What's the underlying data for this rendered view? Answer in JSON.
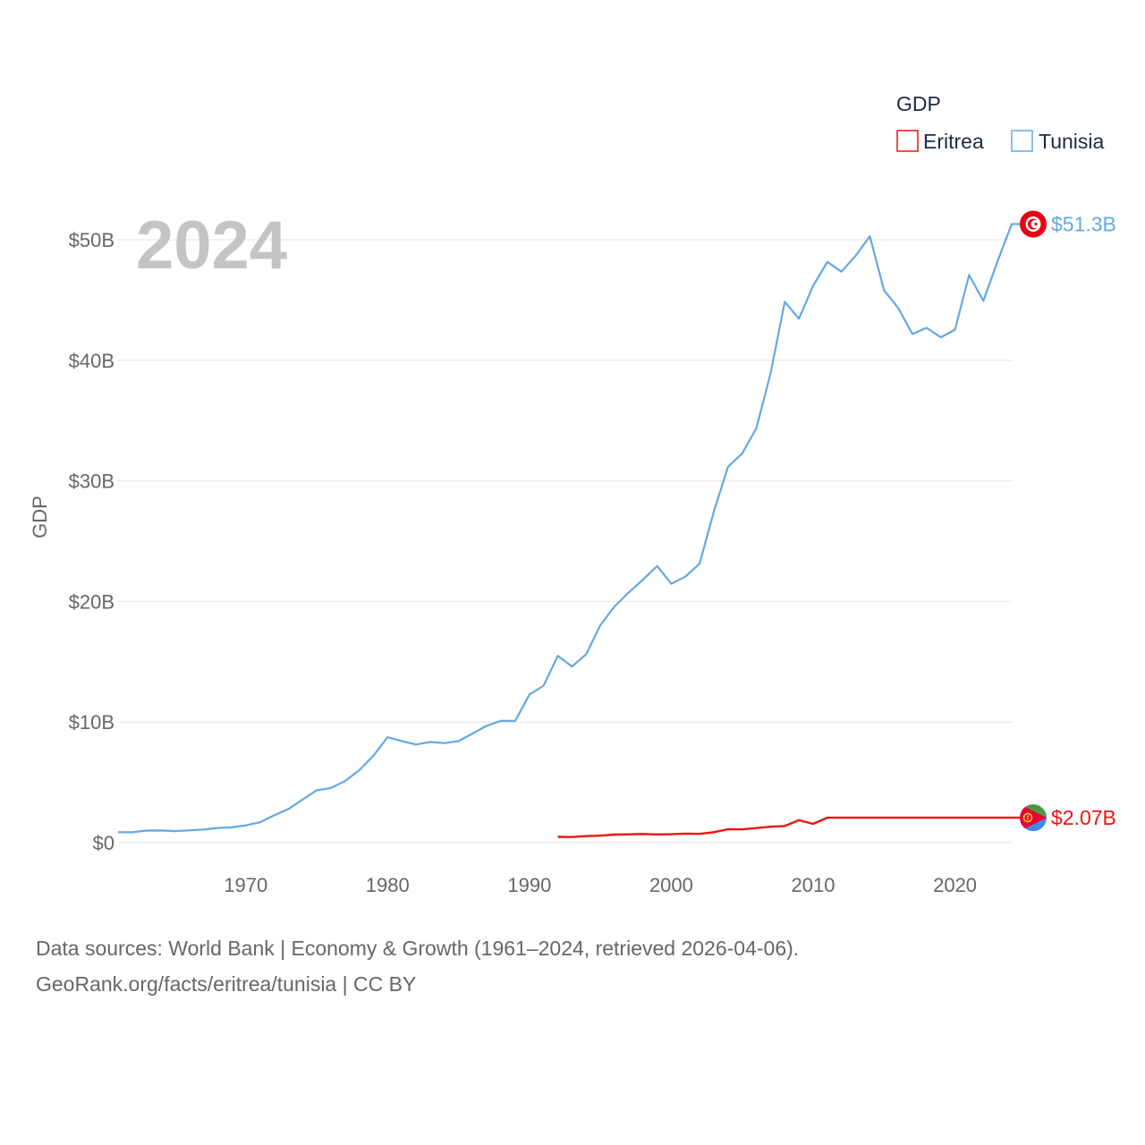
{
  "chart_data": {
    "type": "line",
    "title": "GDP",
    "ylabel": "GDP",
    "xlabel": "",
    "year_label": "2024",
    "ylim": [
      0,
      50000000000
    ],
    "xlim": [
      1961,
      2024
    ],
    "y_ticks": [
      {
        "value": 0,
        "label": "$0"
      },
      {
        "value": 10000000000,
        "label": "$10B"
      },
      {
        "value": 20000000000,
        "label": "$20B"
      },
      {
        "value": 30000000000,
        "label": "$30B"
      },
      {
        "value": 40000000000,
        "label": "$40B"
      },
      {
        "value": 50000000000,
        "label": "$50B"
      }
    ],
    "x_ticks": [
      {
        "value": 1970,
        "label": "1970"
      },
      {
        "value": 1980,
        "label": "1980"
      },
      {
        "value": 1990,
        "label": "1990"
      },
      {
        "value": 2000,
        "label": "2000"
      },
      {
        "value": 2010,
        "label": "2010"
      },
      {
        "value": 2020,
        "label": "2020"
      }
    ],
    "grid": true,
    "legend": {
      "title": "GDP",
      "position": "top-right"
    },
    "series": [
      {
        "name": "Eritrea",
        "color": "#ee1111",
        "end_label": "$2.07B",
        "flag_icon": "eritrea-flag-icon",
        "x": [
          1992,
          1993,
          1994,
          1995,
          1996,
          1997,
          1998,
          1999,
          2000,
          2001,
          2002,
          2003,
          2004,
          2005,
          2006,
          2007,
          2008,
          2009,
          2010,
          2011,
          2024
        ],
        "values": [
          480000000,
          470000000,
          540000000,
          580000000,
          670000000,
          690000000,
          720000000,
          680000000,
          700000000,
          750000000,
          730000000,
          870000000,
          1110000000,
          1100000000,
          1210000000,
          1320000000,
          1380000000,
          1860000000,
          1560000000,
          2070000000,
          2070000000
        ]
      },
      {
        "name": "Tunisia",
        "color": "#62a8e5",
        "end_label": "$51.3B",
        "flag_icon": "tunisia-flag-icon",
        "x": [
          1961,
          1962,
          1963,
          1964,
          1965,
          1966,
          1967,
          1968,
          1969,
          1970,
          1971,
          1972,
          1973,
          1974,
          1975,
          1976,
          1977,
          1978,
          1979,
          1980,
          1981,
          1982,
          1983,
          1984,
          1985,
          1986,
          1987,
          1988,
          1989,
          1990,
          1991,
          1992,
          1993,
          1994,
          1995,
          1996,
          1997,
          1998,
          1999,
          2000,
          2001,
          2002,
          2003,
          2004,
          2005,
          2006,
          2007,
          2008,
          2009,
          2010,
          2011,
          2012,
          2013,
          2014,
          2015,
          2016,
          2017,
          2018,
          2019,
          2020,
          2021,
          2022,
          2023,
          2024
        ],
        "values": [
          870000000,
          860000000,
          1000000000,
          1010000000,
          960000000,
          1020000000,
          1080000000,
          1220000000,
          1270000000,
          1430000000,
          1690000000,
          2260000000,
          2780000000,
          3570000000,
          4340000000,
          4530000000,
          5110000000,
          6000000000,
          7200000000,
          8740000000,
          8430000000,
          8140000000,
          8350000000,
          8260000000,
          8420000000,
          9050000000,
          9700000000,
          10100000000,
          10100000000,
          12290000000,
          13020000000,
          15500000000,
          14610000000,
          15630000000,
          18030000000,
          19590000000,
          20750000000,
          21800000000,
          22940000000,
          21470000000,
          22070000000,
          23140000000,
          27450000000,
          31180000000,
          32270000000,
          34380000000,
          38910000000,
          44860000000,
          43450000000,
          46180000000,
          48150000000,
          47350000000,
          48680000000,
          50290000000,
          45800000000,
          44340000000,
          42180000000,
          42690000000,
          41910000000,
          42540000000,
          47080000000,
          44920000000,
          48200000000,
          51300000000
        ]
      }
    ]
  },
  "footer": {
    "line1": "Data sources: World Bank | Economy & Growth (1961–2024, retrieved 2026-04-06).",
    "line2": "GeoRank.org/facts/eritrea/tunisia | CC BY"
  }
}
